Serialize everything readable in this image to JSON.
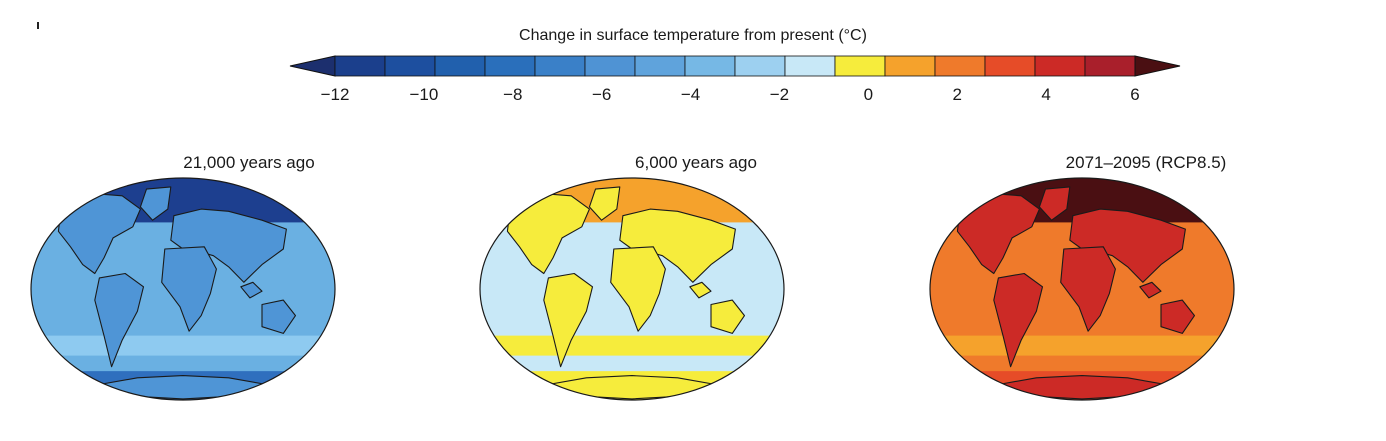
{
  "colorbar": {
    "title": "Change in surface temperature from present (°C)",
    "min": -12,
    "max": 6,
    "step": 1,
    "extend": "both",
    "tick_values": [
      -12,
      -10,
      -8,
      -6,
      -4,
      -2,
      0,
      2,
      4,
      6
    ],
    "tick_labels": [
      "−12",
      "−10",
      "−8",
      "−6",
      "−4",
      "−2",
      "0",
      "2",
      "4",
      "6"
    ],
    "colors": [
      "#1b3f8c",
      "#1d4f9f",
      "#2160ad",
      "#2a6fbb",
      "#3a80c8",
      "#4f93d4",
      "#5fa3dc",
      "#76b8e5",
      "#9dd0f0",
      "#c8e8f7",
      "#f6ec3c",
      "#f5a22c",
      "#ef7a2b",
      "#e64c28",
      "#cc2a26",
      "#a91f2b"
    ],
    "under_color": "#1c2f6e",
    "over_color": "#4a0f12"
  },
  "panels": [
    {
      "id": "lgm",
      "title": "21,000 years ago",
      "ocean_color": "#6ab0e2",
      "land_color": "#4f95d6",
      "highlat_color": "#1d3f8f",
      "band_color": "#8ecaf0",
      "south_color": "#2f6fbe"
    },
    {
      "id": "mid",
      "title": "6,000 years ago",
      "ocean_color": "#c8e8f7",
      "land_color": "#f6ec3c",
      "highlat_color": "#f5a22c",
      "band_color": "#f6ec3c",
      "south_color": "#f6ec3c"
    },
    {
      "id": "future",
      "title": "2071–2095 (RCP8.5)",
      "ocean_color": "#ef7a2b",
      "land_color": "#cc2a26",
      "highlat_color": "#4a0f12",
      "band_color": "#f5a22c",
      "south_color": "#e64c28"
    }
  ]
}
